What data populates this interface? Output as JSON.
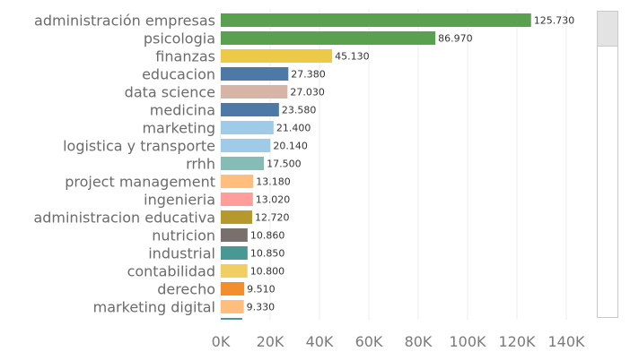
{
  "chart_data": {
    "type": "bar",
    "orientation": "horizontal",
    "categories": [
      "administración empresas",
      "psicologia",
      "finanzas",
      "educacion",
      "data science",
      "medicina",
      "marketing",
      "logistica y transporte",
      "rrhh",
      "project management",
      "ingenieria",
      "administracion educativa",
      "nutricion",
      "industrial",
      "contabilidad",
      "derecho",
      "marketing digital"
    ],
    "values": [
      125730,
      86970,
      45130,
      27380,
      27030,
      23580,
      21400,
      20140,
      17500,
      13180,
      13020,
      12720,
      10860,
      10850,
      10800,
      9510,
      9330
    ],
    "value_labels": [
      "125.730",
      "86.970",
      "45.130",
      "27.380",
      "27.030",
      "23.580",
      "21.400",
      "20.140",
      "17.500",
      "13.180",
      "13.020",
      "12.720",
      "10.860",
      "10.850",
      "10.800",
      "9.510",
      "9.330"
    ],
    "colors": [
      "#59a14f",
      "#59a14f",
      "#edc948",
      "#4e79a7",
      "#d7b5a6",
      "#4e79a7",
      "#a0cbe8",
      "#a0cbe8",
      "#86bcb6",
      "#ffbe7d",
      "#ff9d9a",
      "#b6992d",
      "#79706e",
      "#499894",
      "#f1ce63",
      "#f28e2b",
      "#ffbe7d"
    ],
    "x_ticks": [
      "0K",
      "20K",
      "40K",
      "60K",
      "80K",
      "100K",
      "120K",
      "140K"
    ],
    "x_tick_values": [
      0,
      20000,
      40000,
      60000,
      80000,
      100000,
      120000,
      140000
    ],
    "xlim": [
      0,
      150000
    ],
    "grid": true,
    "partial_next_bar_color": "#499894"
  },
  "scrollbar": {
    "visible": true
  }
}
